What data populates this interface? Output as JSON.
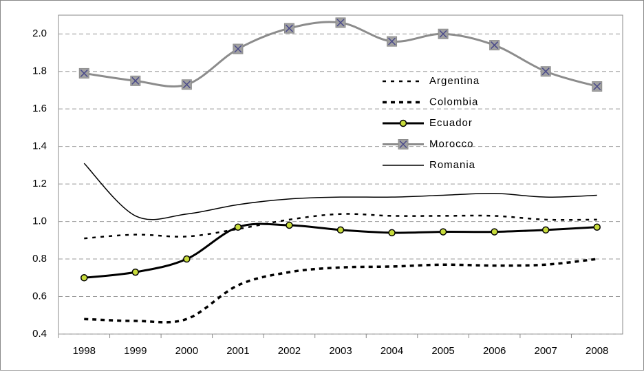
{
  "chart_data": {
    "type": "line",
    "categories": [
      "1998",
      "1999",
      "2000",
      "2001",
      "2002",
      "2003",
      "2004",
      "2005",
      "2006",
      "2007",
      "2008"
    ],
    "series": [
      {
        "name": "Argentina",
        "color": "#000000",
        "values": [
          0.91,
          0.93,
          0.92,
          0.96,
          1.01,
          1.04,
          1.03,
          1.03,
          1.03,
          1.01,
          1.01
        ]
      },
      {
        "name": "Colombia",
        "color": "#000000",
        "values": [
          0.48,
          0.47,
          0.48,
          0.66,
          0.73,
          0.755,
          0.76,
          0.77,
          0.765,
          0.77,
          0.8
        ]
      },
      {
        "name": "Ecuador",
        "color": "#000000",
        "values": [
          0.7,
          0.73,
          0.8,
          0.97,
          0.98,
          0.955,
          0.94,
          0.945,
          0.945,
          0.955,
          0.97
        ]
      },
      {
        "name": "Morocco",
        "color": "#8c8c8c",
        "values": [
          1.79,
          1.75,
          1.73,
          1.92,
          2.03,
          2.06,
          1.96,
          2.0,
          1.94,
          1.8,
          1.72
        ]
      },
      {
        "name": "Romania",
        "color": "#000000",
        "values": [
          1.31,
          1.03,
          1.04,
          1.09,
          1.12,
          1.13,
          1.13,
          1.14,
          1.15,
          1.13,
          1.14
        ]
      }
    ],
    "ylim": [
      0.4,
      2.1
    ],
    "yticks": [
      0.4,
      0.6,
      0.8,
      {
        "value": 1,
        "label": "1.0"
      },
      1.2,
      1.4,
      1.6,
      1.8,
      {
        "value": 2,
        "label": "2.0"
      }
    ],
    "grid": true
  }
}
